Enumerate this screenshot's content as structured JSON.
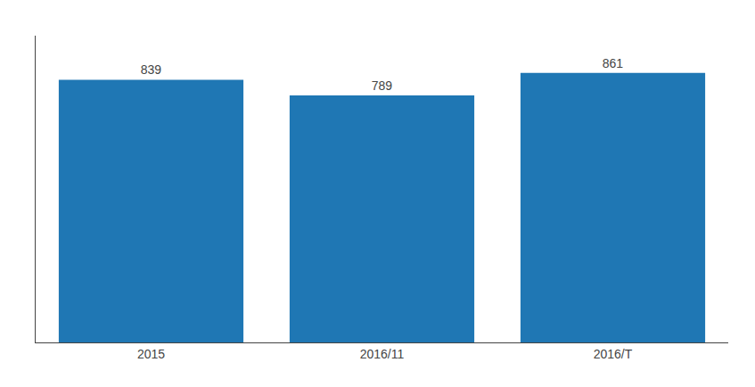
{
  "chart_data": {
    "type": "bar",
    "categories": [
      "2015",
      "2016/11",
      "2016/T"
    ],
    "values": [
      839,
      789,
      861
    ],
    "ylim": [
      0,
      980
    ],
    "data_labels": true,
    "tick_labels": "x",
    "grid": false
  }
}
